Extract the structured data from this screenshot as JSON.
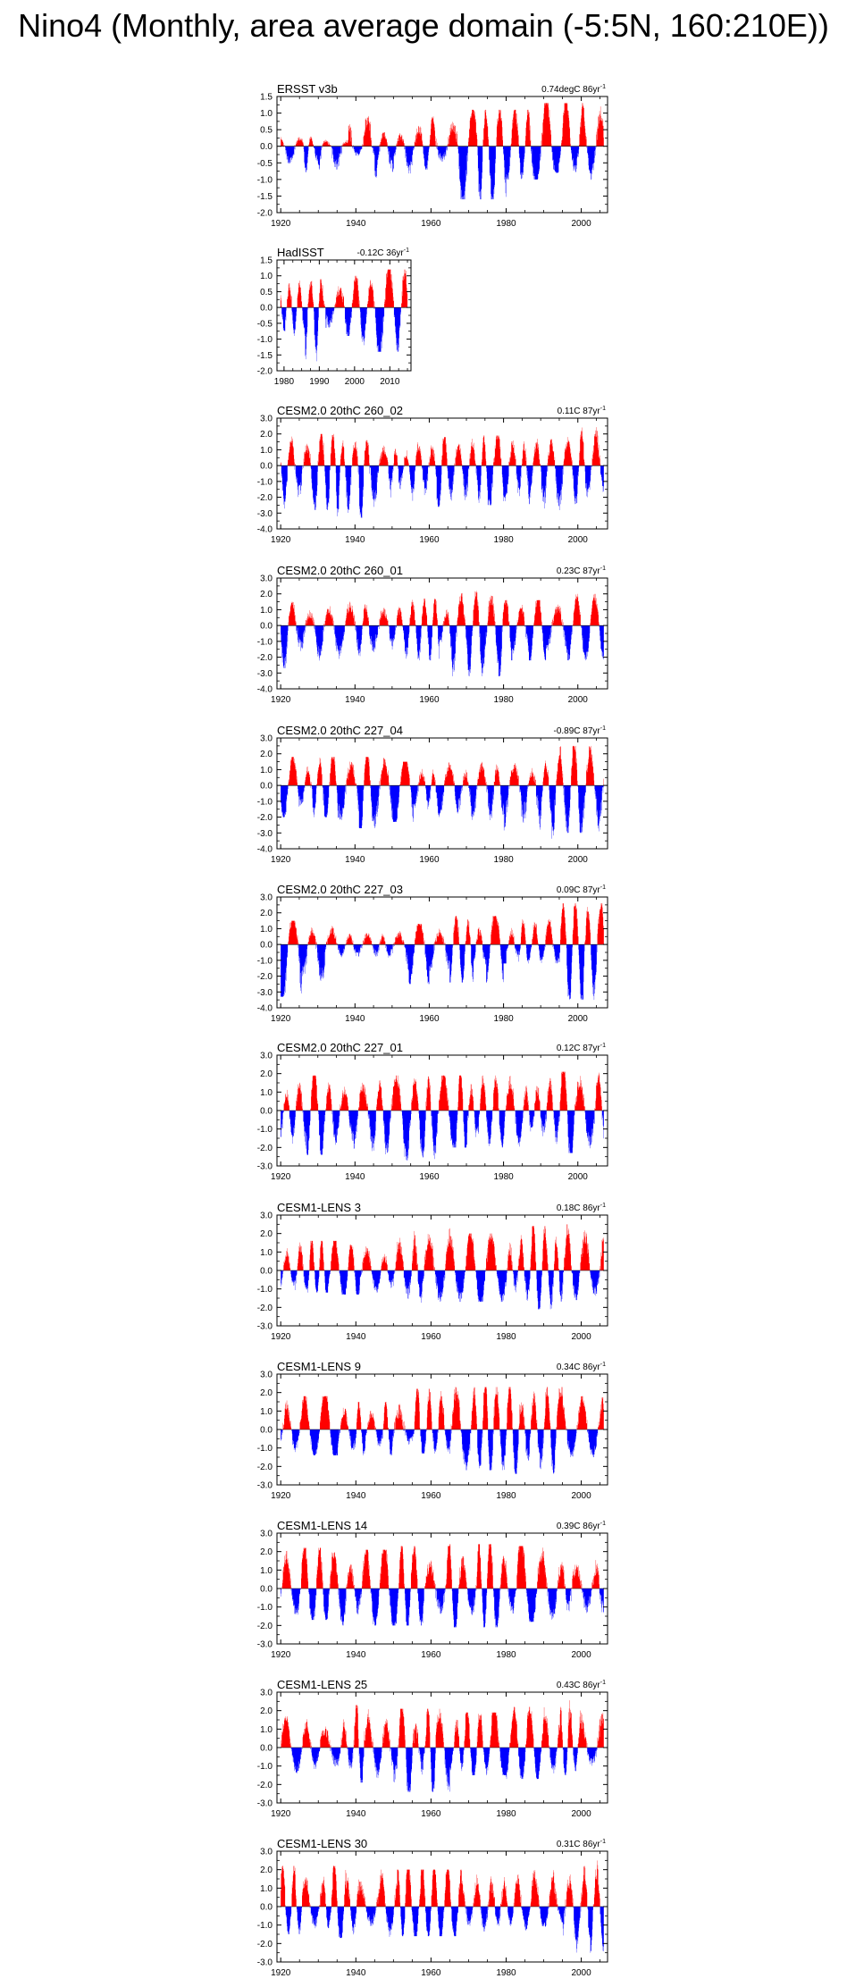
{
  "page": {
    "title": "Nino4 (Monthly, area average domain (-5:5N, 160:210E))"
  },
  "colors": {
    "positive": "#ff0000",
    "negative": "#0000ff",
    "frame": "#000000",
    "zero_line": "#000000"
  },
  "chart_data": [
    {
      "type": "bar",
      "title": "ERSST v3b",
      "trend_value": "0.74degC 86yr",
      "trend_exp": "-1",
      "x_start": 1920.0,
      "x_end": 2006.0,
      "xlim": [
        1919,
        2007
      ],
      "xticks": [
        1920,
        1940,
        1960,
        1980,
        2000
      ],
      "ylim": [
        -2.0,
        1.5
      ],
      "yticks": [
        "-2.0",
        "-1.5",
        "-1.0",
        "-0.5",
        "0.0",
        "0.5",
        "1.0",
        "1.5"
      ],
      "y_tick_values": [
        -2.0,
        -1.5,
        -1.0,
        -0.5,
        0.0,
        0.5,
        1.0,
        1.5
      ],
      "regime": [
        [
          1919,
          1925,
          0.4,
          -0.7
        ],
        [
          1925,
          1930,
          0.3,
          -0.8
        ],
        [
          1930,
          1938,
          0.3,
          -1.1
        ],
        [
          1938,
          1945,
          1.3,
          -0.4
        ],
        [
          1945,
          1955,
          0.6,
          -1.2
        ],
        [
          1955,
          1965,
          0.9,
          -0.7
        ],
        [
          1965,
          1980,
          1.1,
          -1.6
        ],
        [
          1980,
          1990,
          1.1,
          -1.0
        ],
        [
          1990,
          2000,
          1.3,
          -0.8
        ],
        [
          2000,
          2007,
          1.3,
          -1.1
        ]
      ]
    },
    {
      "type": "bar",
      "title": "HadISST",
      "trend_value": "-0.12C 36yr",
      "trend_exp": "-1",
      "x_start": 1979.0,
      "x_end": 2015.0,
      "xlim": [
        1978,
        2016
      ],
      "xticks": [
        1980,
        1990,
        2000,
        2010
      ],
      "ylim": [
        -2.0,
        1.5
      ],
      "yticks": [
        "-2.0",
        "-1.5",
        "-1.0",
        "-0.5",
        "0.0",
        "0.5",
        "1.0",
        "1.5"
      ],
      "y_tick_values": [
        -2.0,
        -1.5,
        -1.0,
        -0.5,
        0.0,
        0.5,
        1.0,
        1.5
      ],
      "regime": [
        [
          1978,
          1986,
          0.9,
          -0.9
        ],
        [
          1986,
          1992,
          0.9,
          -1.7
        ],
        [
          1992,
          2000,
          1.0,
          -0.9
        ],
        [
          2000,
          2006,
          1.0,
          -1.3
        ],
        [
          2006,
          2016,
          1.2,
          -1.4
        ]
      ]
    },
    {
      "type": "bar",
      "title": "CESM2.0 20thC 260_02",
      "trend_value": "0.11C 87yr",
      "trend_exp": "-1",
      "x_start": 1920.0,
      "x_end": 2007.0,
      "xlim": [
        1919,
        2008
      ],
      "xticks": [
        1920,
        1940,
        1960,
        1980,
        2000
      ],
      "ylim": [
        -4.0,
        3.0
      ],
      "yticks": [
        "-4.0",
        "-3.0",
        "-2.0",
        "-1.0",
        "0.0",
        "1.0",
        "2.0",
        "3.0"
      ],
      "y_tick_values": [
        -4.0,
        -3.0,
        -2.0,
        -1.0,
        0.0,
        1.0,
        2.0,
        3.0
      ],
      "regime": [
        [
          1919,
          1935,
          2.0,
          -2.8
        ],
        [
          1935,
          1950,
          1.6,
          -3.3
        ],
        [
          1950,
          1965,
          1.8,
          -2.6
        ],
        [
          1965,
          1985,
          1.9,
          -2.5
        ],
        [
          1985,
          2000,
          1.9,
          -2.9
        ],
        [
          2000,
          2008,
          2.7,
          -2.2
        ]
      ]
    },
    {
      "type": "bar",
      "title": "CESM2.0 20thC 260_01",
      "trend_value": "0.23C 87yr",
      "trend_exp": "-1",
      "x_start": 1920.0,
      "x_end": 2007.0,
      "xlim": [
        1919,
        2008
      ],
      "xticks": [
        1920,
        1940,
        1960,
        1980,
        2000
      ],
      "ylim": [
        -4.0,
        3.0
      ],
      "yticks": [
        "-4.0",
        "-3.0",
        "-2.0",
        "-1.0",
        "0.0",
        "1.0",
        "2.0",
        "3.0"
      ],
      "y_tick_values": [
        -4.0,
        -3.0,
        -2.0,
        -1.0,
        0.0,
        1.0,
        2.0,
        3.0
      ],
      "regime": [
        [
          1919,
          1935,
          1.5,
          -2.7
        ],
        [
          1935,
          1950,
          1.7,
          -2.4
        ],
        [
          1950,
          1965,
          1.7,
          -2.2
        ],
        [
          1965,
          1980,
          2.2,
          -3.2
        ],
        [
          1980,
          1995,
          1.6,
          -2.2
        ],
        [
          1995,
          2008,
          2.0,
          -2.2
        ]
      ]
    },
    {
      "type": "bar",
      "title": "CESM2.0 20thC 227_04",
      "trend_value": "-0.89C 87yr",
      "trend_exp": "-1",
      "x_start": 1920.0,
      "x_end": 2007.0,
      "xlim": [
        1919,
        2008
      ],
      "xticks": [
        1920,
        1940,
        1960,
        1980,
        2000
      ],
      "ylim": [
        -4.0,
        3.0
      ],
      "yticks": [
        "-4.0",
        "-3.0",
        "-2.0",
        "-1.0",
        "0.0",
        "1.0",
        "2.0",
        "3.0"
      ],
      "y_tick_values": [
        -4.0,
        -3.0,
        -2.0,
        -1.0,
        0.0,
        1.0,
        2.0,
        3.0
      ],
      "regime": [
        [
          1919,
          1935,
          1.8,
          -2.0
        ],
        [
          1935,
          1950,
          1.8,
          -2.7
        ],
        [
          1950,
          1965,
          1.5,
          -2.3
        ],
        [
          1965,
          1980,
          1.6,
          -2.6
        ],
        [
          1980,
          1995,
          2.0,
          -3.6
        ],
        [
          1995,
          2008,
          2.5,
          -3.0
        ]
      ]
    },
    {
      "type": "bar",
      "title": "CESM2.0 20thC 227_03",
      "trend_value": "0.09C 87yr",
      "trend_exp": "-1",
      "x_start": 1920.0,
      "x_end": 2007.0,
      "xlim": [
        1919,
        2008
      ],
      "xticks": [
        1920,
        1940,
        1960,
        1980,
        2000
      ],
      "ylim": [
        -4.0,
        3.0
      ],
      "yticks": [
        "-4.0",
        "-3.0",
        "-2.0",
        "-1.0",
        "0.0",
        "1.0",
        "2.0",
        "3.0"
      ],
      "y_tick_values": [
        -4.0,
        -3.0,
        -2.0,
        -1.0,
        0.0,
        1.0,
        2.0,
        3.0
      ],
      "regime": [
        [
          1919,
          1935,
          1.5,
          -3.3
        ],
        [
          1935,
          1950,
          1.1,
          -1.2
        ],
        [
          1950,
          1965,
          1.3,
          -2.5
        ],
        [
          1965,
          1980,
          1.8,
          -2.4
        ],
        [
          1980,
          1995,
          1.6,
          -1.2
        ],
        [
          1995,
          2008,
          2.6,
          -3.5
        ]
      ]
    },
    {
      "type": "bar",
      "title": "CESM2.0 20thC 227_01",
      "trend_value": "0.12C 87yr",
      "trend_exp": "-1",
      "x_start": 1920.0,
      "x_end": 2007.0,
      "xlim": [
        1919,
        2008
      ],
      "xticks": [
        1920,
        1940,
        1960,
        1980,
        2000
      ],
      "ylim": [
        -3.0,
        3.0
      ],
      "yticks": [
        "-3.0",
        "-2.0",
        "-1.0",
        "0.0",
        "1.0",
        "2.0",
        "3.0"
      ],
      "y_tick_values": [
        -3.0,
        -2.0,
        -1.0,
        0.0,
        1.0,
        2.0,
        3.0
      ],
      "regime": [
        [
          1919,
          1935,
          1.9,
          -2.4
        ],
        [
          1935,
          1950,
          1.7,
          -2.4
        ],
        [
          1950,
          1965,
          1.9,
          -2.7
        ],
        [
          1965,
          1980,
          1.9,
          -2.0
        ],
        [
          1980,
          1995,
          2.1,
          -2.2
        ],
        [
          1995,
          2008,
          2.1,
          -2.3
        ]
      ]
    },
    {
      "type": "bar",
      "title": "CESM1-LENS 3",
      "trend_value": "0.18C 86yr",
      "trend_exp": "-1",
      "x_start": 1920.0,
      "x_end": 2006.0,
      "xlim": [
        1919,
        2007
      ],
      "xticks": [
        1920,
        1940,
        1960,
        1980,
        2000
      ],
      "ylim": [
        -3.0,
        3.0
      ],
      "yticks": [
        "-3.0",
        "-2.0",
        "-1.0",
        "0.0",
        "1.0",
        "2.0",
        "3.0"
      ],
      "y_tick_values": [
        -3.0,
        -2.0,
        -1.0,
        0.0,
        1.0,
        2.0,
        3.0
      ],
      "regime": [
        [
          1919,
          1935,
          1.6,
          -1.2
        ],
        [
          1935,
          1950,
          1.4,
          -1.3
        ],
        [
          1950,
          1965,
          2.3,
          -1.9
        ],
        [
          1965,
          1980,
          2.0,
          -1.7
        ],
        [
          1980,
          1995,
          2.4,
          -2.1
        ],
        [
          1995,
          2007,
          2.5,
          -1.6
        ]
      ]
    },
    {
      "type": "bar",
      "title": "CESM1-LENS 9",
      "trend_value": "0.34C 86yr",
      "trend_exp": "-1",
      "x_start": 1920.0,
      "x_end": 2006.0,
      "xlim": [
        1919,
        2007
      ],
      "xticks": [
        1920,
        1940,
        1960,
        1980,
        2000
      ],
      "ylim": [
        -3.0,
        3.0
      ],
      "yticks": [
        "-3.0",
        "-2.0",
        "-1.0",
        "0.0",
        "1.0",
        "2.0",
        "3.0"
      ],
      "y_tick_values": [
        -3.0,
        -2.0,
        -1.0,
        0.0,
        1.0,
        2.0,
        3.0
      ],
      "regime": [
        [
          1919,
          1935,
          1.8,
          -1.4
        ],
        [
          1935,
          1950,
          1.5,
          -1.4
        ],
        [
          1950,
          1965,
          2.2,
          -1.3
        ],
        [
          1965,
          1980,
          2.3,
          -2.2
        ],
        [
          1980,
          1995,
          2.3,
          -2.4
        ],
        [
          1995,
          2007,
          1.8,
          -1.5
        ]
      ]
    },
    {
      "type": "bar",
      "title": "CESM1-LENS 14",
      "trend_value": "0.39C 86yr",
      "trend_exp": "-1",
      "x_start": 1920.0,
      "x_end": 2006.0,
      "xlim": [
        1919,
        2007
      ],
      "xticks": [
        1920,
        1940,
        1960,
        1980,
        2000
      ],
      "ylim": [
        -3.0,
        3.0
      ],
      "yticks": [
        "-3.0",
        "-2.0",
        "-1.0",
        "0.0",
        "1.0",
        "2.0",
        "3.0"
      ],
      "y_tick_values": [
        -3.0,
        -2.0,
        -1.0,
        0.0,
        1.0,
        2.0,
        3.0
      ],
      "regime": [
        [
          1919,
          1935,
          2.2,
          -1.7
        ],
        [
          1935,
          1950,
          2.1,
          -2.0
        ],
        [
          1950,
          1965,
          2.3,
          -2.0
        ],
        [
          1965,
          1980,
          2.4,
          -2.1
        ],
        [
          1980,
          1995,
          2.3,
          -1.8
        ],
        [
          1995,
          2007,
          2.4,
          -2.1
        ]
      ]
    },
    {
      "type": "bar",
      "title": "CESM1-LENS 25",
      "trend_value": "0.43C 86yr",
      "trend_exp": "-1",
      "x_start": 1920.0,
      "x_end": 2006.0,
      "xlim": [
        1919,
        2007
      ],
      "xticks": [
        1920,
        1940,
        1960,
        1980,
        2000
      ],
      "ylim": [
        -3.0,
        3.0
      ],
      "yticks": [
        "-3.0",
        "-2.0",
        "-1.0",
        "0.0",
        "1.0",
        "2.0",
        "3.0"
      ],
      "y_tick_values": [
        -3.0,
        -2.0,
        -1.0,
        0.0,
        1.0,
        2.0,
        3.0
      ],
      "regime": [
        [
          1919,
          1935,
          1.7,
          -1.4
        ],
        [
          1935,
          1950,
          2.3,
          -1.9
        ],
        [
          1950,
          1965,
          2.1,
          -2.4
        ],
        [
          1965,
          1980,
          1.9,
          -1.5
        ],
        [
          1980,
          1995,
          2.2,
          -1.7
        ],
        [
          1995,
          2007,
          2.6,
          -1.5
        ]
      ]
    },
    {
      "type": "bar",
      "title": "CESM1-LENS 30",
      "trend_value": "0.31C 86yr",
      "trend_exp": "-1",
      "x_start": 1920.0,
      "x_end": 2006.0,
      "xlim": [
        1919,
        2007
      ],
      "xticks": [
        1920,
        1940,
        1960,
        1980,
        2000
      ],
      "ylim": [
        -3.0,
        3.0
      ],
      "yticks": [
        "-3.0",
        "-2.0",
        "-1.0",
        "0.0",
        "1.0",
        "2.0",
        "3.0"
      ],
      "y_tick_values": [
        -3.0,
        -2.0,
        -1.0,
        0.0,
        1.0,
        2.0,
        3.0
      ],
      "regime": [
        [
          1919,
          1935,
          2.2,
          -1.5
        ],
        [
          1935,
          1950,
          2.0,
          -1.7
        ],
        [
          1950,
          1965,
          2.0,
          -1.6
        ],
        [
          1965,
          1980,
          2.0,
          -1.6
        ],
        [
          1980,
          1995,
          2.0,
          -1.3
        ],
        [
          1995,
          2007,
          2.5,
          -2.8
        ]
      ]
    }
  ]
}
